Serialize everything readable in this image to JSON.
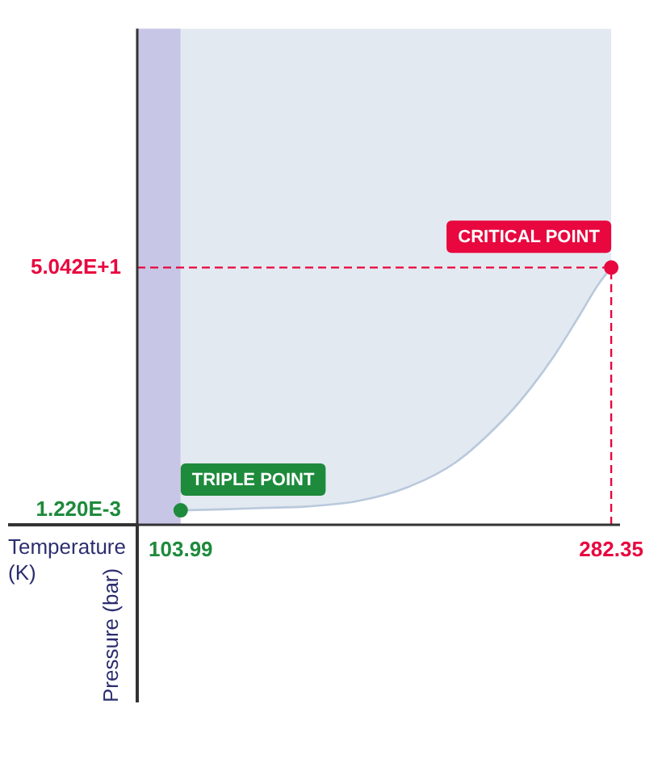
{
  "chart_data": {
    "type": "line",
    "xlabel": "Temperature (K)",
    "ylabel": "Pressure (bar)",
    "xlim": [
      86,
      286
    ],
    "ylim": [
      -3,
      100
    ],
    "xticks": [
      103.99,
      282.35
    ],
    "yticks": [
      {
        "value": 0.00122,
        "label": "1.220E-3"
      },
      {
        "value": 50.42,
        "label": "5.042E+1"
      }
    ],
    "series": [
      {
        "color": "#b9c9dc",
        "x": [
          103.99,
          121,
          138,
          156,
          177,
          198,
          218,
          238,
          249,
          259,
          269,
          277,
          282.35
        ],
        "values": [
          0.00122,
          0.2,
          0.5,
          0.8,
          1.9,
          4.8,
          10,
          19,
          25.4,
          32.3,
          40.3,
          46.9,
          50.42
        ],
        "lower": [
          0.00122,
          0.2,
          0.5,
          0.8,
          1.9,
          4.8,
          10,
          19,
          25.4,
          32.3,
          40.3,
          46.9,
          50.42
        ],
        "upper": [
          100,
          100,
          100,
          100,
          100,
          100,
          100,
          100,
          100,
          100,
          100,
          100,
          100
        ]
      },
      {
        "type": "scatter",
        "marker": "circle",
        "x": [
          103.99,
          282.35
        ],
        "values": [
          0.00122,
          50.42
        ],
        "colors": [
          "#1e8a3c",
          "#e8073f"
        ]
      }
    ],
    "bands": [
      {
        "axis": "x",
        "from": 86,
        "to": 103.99,
        "color": "#c8c6e6"
      }
    ],
    "ref_lines": [
      {
        "axis": "y",
        "value": 50.42,
        "color": "#e8073f",
        "line_style": "dashed"
      },
      {
        "axis": "x",
        "value": 282.35,
        "color": "#e8073f",
        "line_style": "dashed"
      }
    ],
    "annotations": [
      {
        "text": "TRIPLE POINT",
        "x": 103.99,
        "y": 0.00122
      },
      {
        "text": "CRITICAL POINT",
        "x": 282.35,
        "y": 50.42
      }
    ]
  }
}
